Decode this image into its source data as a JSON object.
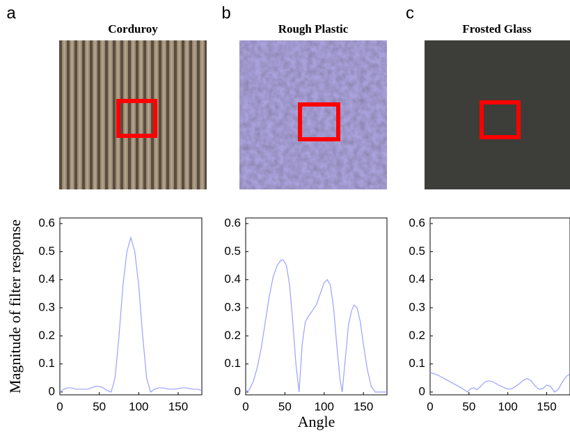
{
  "chart_data": [
    {
      "type": "line",
      "label": "a",
      "title": "Corduroy",
      "ylabel": "Magnitude of filter response",
      "x": [
        0,
        5,
        10,
        15,
        20,
        25,
        30,
        35,
        40,
        45,
        50,
        55,
        60,
        65,
        70,
        75,
        80,
        85,
        90,
        95,
        100,
        105,
        110,
        115,
        120,
        125,
        130,
        135,
        140,
        145,
        150,
        155,
        160,
        165,
        170,
        175,
        180
      ],
      "values": [
        0,
        0.01,
        0.015,
        0.015,
        0.01,
        0.01,
        0.01,
        0.01,
        0.015,
        0.02,
        0.02,
        0.015,
        0.005,
        0,
        0.05,
        0.2,
        0.38,
        0.5,
        0.55,
        0.5,
        0.38,
        0.2,
        0.05,
        0,
        0.01,
        0.015,
        0.015,
        0.012,
        0.01,
        0.01,
        0.012,
        0.015,
        0.015,
        0.012,
        0.01,
        0.01,
        0.005
      ],
      "color": "#9aa0ff",
      "xlim": [
        0,
        180
      ],
      "ylim": [
        -0.01,
        0.62
      ],
      "xticks": [
        0,
        50,
        100,
        150
      ],
      "yticks": [
        0,
        0.1,
        0.2,
        0.3,
        0.4,
        0.5,
        0.6
      ]
    },
    {
      "type": "line",
      "label": "b",
      "title": "Rough Plastic",
      "xlabel": "Angle",
      "x": [
        0,
        5,
        10,
        15,
        20,
        25,
        30,
        35,
        40,
        45,
        48,
        52,
        56,
        60,
        64,
        68,
        72,
        76,
        80,
        85,
        90,
        95,
        100,
        104,
        108,
        112,
        116,
        120,
        123,
        127,
        131,
        135,
        138,
        142,
        146,
        150,
        155,
        160,
        165,
        170,
        175,
        180
      ],
      "values": [
        0,
        0.01,
        0.04,
        0.09,
        0.16,
        0.25,
        0.34,
        0.41,
        0.45,
        0.47,
        0.47,
        0.45,
        0.38,
        0.25,
        0.1,
        0,
        0.17,
        0.25,
        0.27,
        0.29,
        0.31,
        0.35,
        0.39,
        0.4,
        0.38,
        0.3,
        0.17,
        0.05,
        0,
        0.12,
        0.24,
        0.29,
        0.31,
        0.3,
        0.25,
        0.17,
        0.08,
        0.02,
        0,
        0,
        0,
        0
      ],
      "color": "#9aa0ff",
      "xlim": [
        0,
        180
      ],
      "ylim": [
        -0.01,
        0.62
      ],
      "xticks": [
        0,
        50,
        100,
        150
      ],
      "yticks": [
        0,
        0.1,
        0.2,
        0.3,
        0.4,
        0.5,
        0.6
      ]
    },
    {
      "type": "line",
      "label": "c",
      "title": "Frosted Glass",
      "x": [
        0,
        10,
        20,
        30,
        40,
        48,
        52,
        56,
        60,
        65,
        70,
        75,
        80,
        85,
        90,
        100,
        105,
        110,
        115,
        120,
        125,
        130,
        135,
        140,
        145,
        150,
        155,
        160,
        165,
        170,
        175,
        180
      ],
      "values": [
        0.07,
        0.06,
        0.045,
        0.03,
        0.015,
        0,
        0.012,
        0.015,
        0.008,
        0.02,
        0.035,
        0.04,
        0.037,
        0.03,
        0.022,
        0.01,
        0.012,
        0.02,
        0.03,
        0.042,
        0.048,
        0.04,
        0.022,
        0.01,
        0.012,
        0.025,
        0.02,
        0,
        0.01,
        0.035,
        0.055,
        0.065
      ],
      "color": "#9aa0ff",
      "xlim": [
        0,
        180
      ],
      "ylim": [
        -0.01,
        0.62
      ],
      "xticks": [
        0,
        50,
        100,
        150
      ],
      "yticks": [
        0,
        0.1,
        0.2,
        0.3,
        0.4,
        0.5,
        0.6
      ]
    }
  ]
}
